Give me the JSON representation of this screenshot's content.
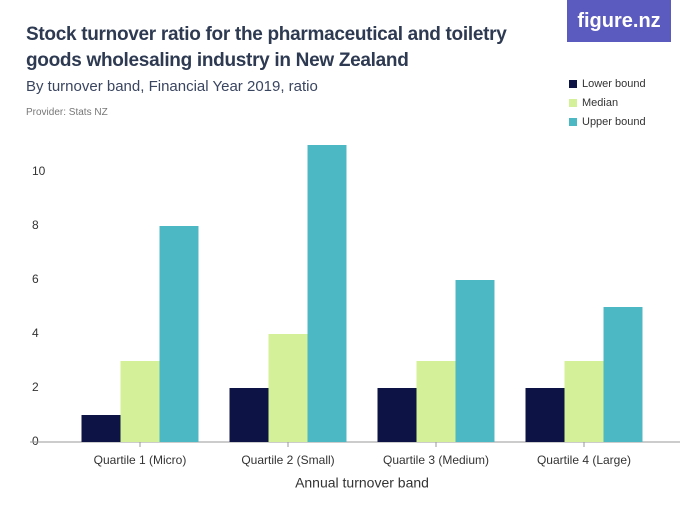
{
  "logo": "figure.nz",
  "chart_data": {
    "type": "bar",
    "title": "Stock turnover ratio for the pharmaceutical and toiletry goods wholesaling industry in New Zealand",
    "subtitle": "By turnover band, Financial Year 2019, ratio",
    "provider": "Provider: Stats NZ",
    "x_label": "Annual turnover band",
    "categories": [
      "Quartile 1 (Micro)",
      "Quartile 2 (Small)",
      "Quartile 3 (Medium)",
      "Quartile 4 (Large)"
    ],
    "series": [
      {
        "name": "Lower bound",
        "color": "#0d1445",
        "values": [
          1,
          2,
          2,
          2
        ]
      },
      {
        "name": "Median",
        "color": "#d4f19a",
        "values": [
          3,
          4,
          3,
          3
        ]
      },
      {
        "name": "Upper bound",
        "color": "#4cb8c4",
        "values": [
          8,
          11,
          6,
          5
        ]
      }
    ],
    "ylim": [
      0,
      11
    ],
    "yticks": [
      0,
      2,
      4,
      6,
      8,
      10
    ],
    "grid": false,
    "legend": "top-right"
  }
}
